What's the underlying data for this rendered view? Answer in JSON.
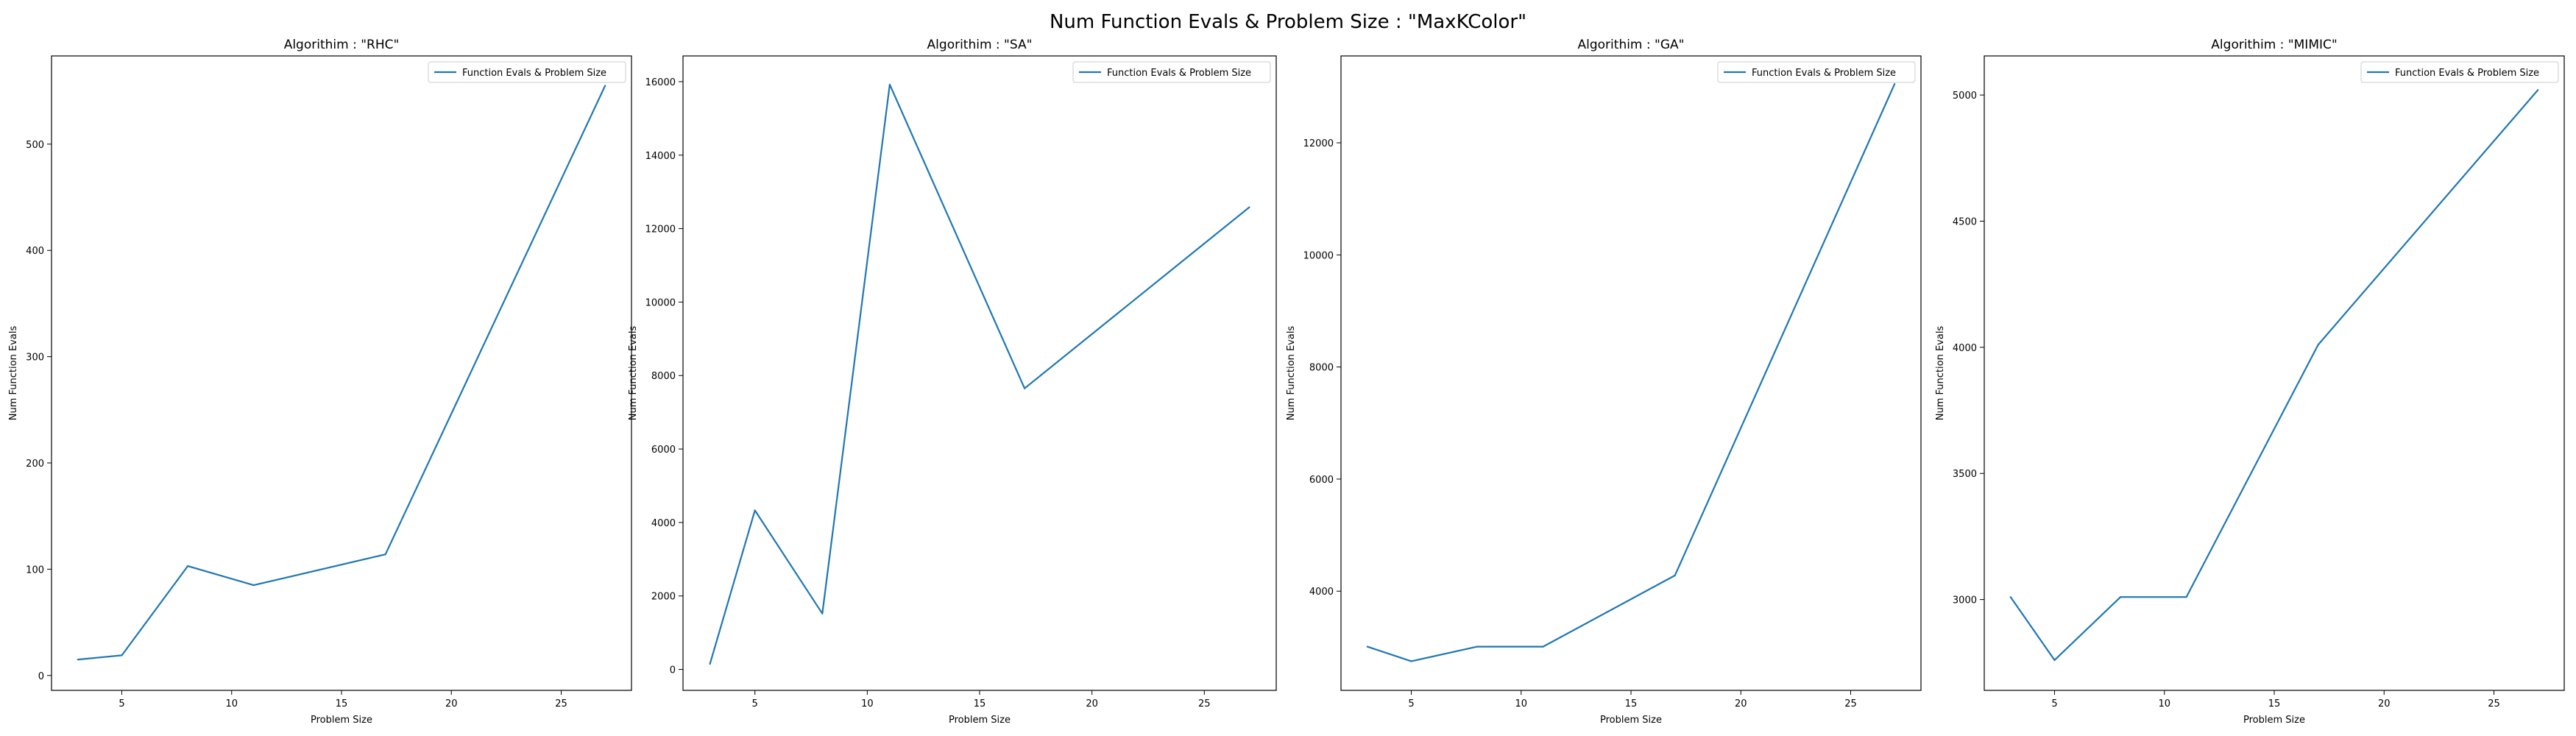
{
  "figure": {
    "suptitle": "Num Function Evals & Problem Size : \"MaxKColor\""
  },
  "style": {
    "line_color": "#1f77b4",
    "axis_color": "#000000",
    "legend_border": "#cccccc"
  },
  "chart_data": [
    {
      "type": "line",
      "title": "Algorithim : \"RHC\"",
      "xlabel": "Problem Size",
      "ylabel": "Num Function Evals",
      "grid": false,
      "legend": "top-right",
      "xlim": [
        1.8,
        28.2
      ],
      "ylim": [
        -14,
        583
      ],
      "xticks": [
        5,
        10,
        15,
        20,
        25
      ],
      "yticks": [
        0,
        100,
        200,
        300,
        400,
        500
      ],
      "series": [
        {
          "name": "Function Evals & Problem Size",
          "x": [
            3,
            5,
            8,
            11,
            17,
            27
          ],
          "y": [
            15,
            19,
            103,
            85,
            114,
            555
          ]
        }
      ]
    },
    {
      "type": "line",
      "title": "Algorithim : \"SA\"",
      "xlabel": "Problem Size",
      "ylabel": "Num Function Evals",
      "grid": false,
      "legend": "top-right",
      "xlim": [
        1.8,
        28.2
      ],
      "ylim": [
        -570,
        16700
      ],
      "xticks": [
        5,
        10,
        15,
        20,
        25
      ],
      "yticks": [
        0,
        2000,
        4000,
        6000,
        8000,
        10000,
        12000,
        14000,
        16000
      ],
      "series": [
        {
          "name": "Function Evals & Problem Size",
          "x": [
            3,
            5,
            8,
            11,
            17,
            27
          ],
          "y": [
            150,
            4330,
            1520,
            15920,
            7650,
            12580
          ]
        }
      ]
    },
    {
      "type": "line",
      "title": "Algorithim : \"GA\"",
      "xlabel": "Problem Size",
      "ylabel": "Num Function Evals",
      "grid": false,
      "legend": "top-right",
      "xlim": [
        1.8,
        28.2
      ],
      "ylim": [
        2230,
        13550
      ],
      "xticks": [
        5,
        10,
        15,
        20,
        25
      ],
      "yticks": [
        4000,
        6000,
        8000,
        10000,
        12000
      ],
      "series": [
        {
          "name": "Function Evals & Problem Size",
          "x": [
            3,
            5,
            8,
            11,
            17,
            27
          ],
          "y": [
            3010,
            2750,
            3010,
            3010,
            4280,
            13050
          ]
        }
      ]
    },
    {
      "type": "line",
      "title": "Algorithim : \"MIMIC\"",
      "xlabel": "Problem Size",
      "ylabel": "Num Function Evals",
      "grid": false,
      "legend": "top-right",
      "xlim": [
        1.8,
        28.2
      ],
      "ylim": [
        2640,
        5155
      ],
      "xticks": [
        5,
        10,
        15,
        20,
        25
      ],
      "yticks": [
        3000,
        3500,
        4000,
        4500,
        5000
      ],
      "series": [
        {
          "name": "Function Evals & Problem Size",
          "x": [
            3,
            5,
            8,
            11,
            17,
            27
          ],
          "y": [
            3010,
            2760,
            3010,
            3010,
            4010,
            5020
          ]
        }
      ]
    }
  ]
}
